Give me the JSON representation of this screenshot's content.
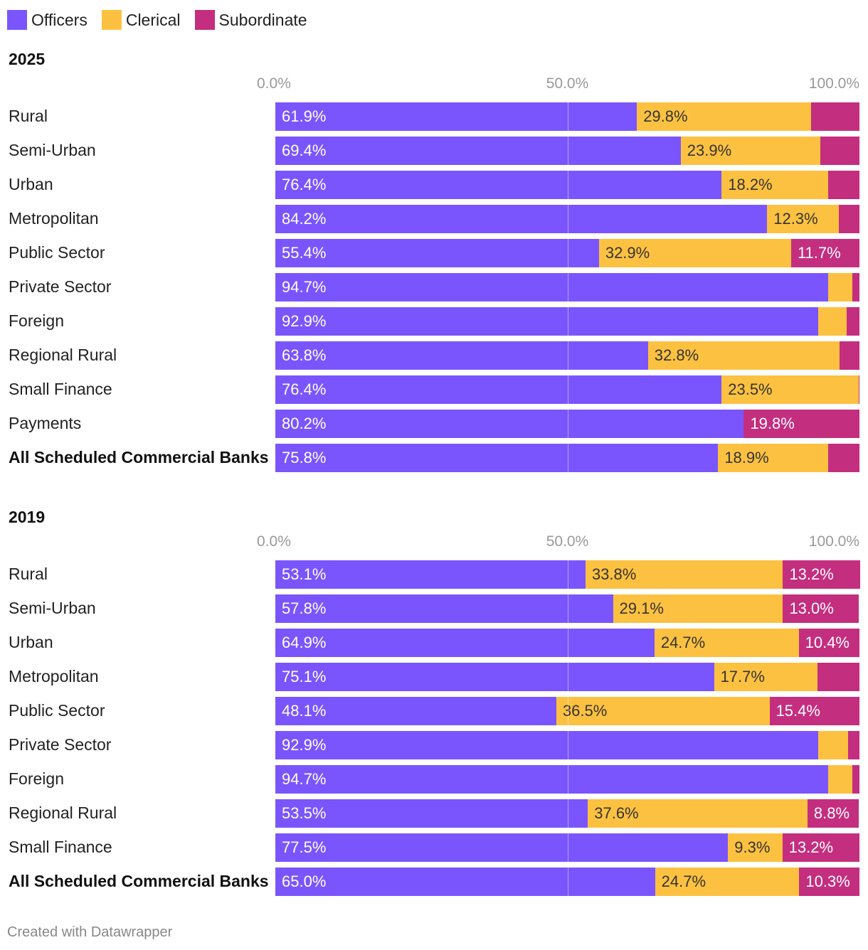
{
  "legend": [
    {
      "key": "officers",
      "label": "Officers",
      "color": "#7a55fd"
    },
    {
      "key": "clerical",
      "label": "Clerical",
      "color": "#fdc141"
    },
    {
      "key": "subordinate",
      "label": "Subordinate",
      "color": "#c42e7f"
    }
  ],
  "footer": "Created with Datawrapper",
  "chart_data": [
    {
      "type": "bar",
      "orientation": "horizontal",
      "stacked": true,
      "title": "2025",
      "xlim": [
        0,
        100
      ],
      "ticks": [
        "0.0%",
        "50.0%",
        "100.0%"
      ],
      "categories": [
        "Rural",
        "Semi-Urban",
        "Urban",
        "Metropolitan",
        "Public Sector",
        "Private Sector",
        "Foreign",
        "Regional Rural",
        "Small Finance",
        "Payments",
        "All Scheduled Commercial Banks"
      ],
      "series": [
        {
          "name": "Officers",
          "values": [
            61.9,
            69.4,
            76.4,
            84.2,
            55.4,
            94.7,
            92.9,
            63.8,
            76.4,
            80.2,
            75.8
          ]
        },
        {
          "name": "Clerical",
          "values": [
            29.8,
            23.9,
            18.2,
            12.3,
            32.9,
            4.1,
            4.9,
            32.8,
            23.5,
            0.0,
            18.9
          ]
        },
        {
          "name": "Subordinate",
          "values": [
            8.3,
            6.7,
            5.4,
            3.5,
            11.7,
            1.2,
            2.2,
            3.4,
            0.1,
            19.8,
            5.3
          ]
        }
      ],
      "shown_labels": [
        [
          "61.9%",
          "29.8%",
          ""
        ],
        [
          "69.4%",
          "23.9%",
          ""
        ],
        [
          "76.4%",
          "18.2%",
          ""
        ],
        [
          "84.2%",
          "12.3%",
          ""
        ],
        [
          "55.4%",
          "32.9%",
          "11.7%"
        ],
        [
          "94.7%",
          "",
          ""
        ],
        [
          "92.9%",
          "",
          ""
        ],
        [
          "63.8%",
          "32.8%",
          ""
        ],
        [
          "76.4%",
          "23.5%",
          ""
        ],
        [
          "80.2%",
          "",
          "19.8%"
        ],
        [
          "75.8%",
          "18.9%",
          ""
        ]
      ],
      "bold_categories": [
        "All Scheduled Commercial Banks"
      ]
    },
    {
      "type": "bar",
      "orientation": "horizontal",
      "stacked": true,
      "title": "2019",
      "xlim": [
        0,
        100
      ],
      "ticks": [
        "0.0%",
        "50.0%",
        "100.0%"
      ],
      "categories": [
        "Rural",
        "Semi-Urban",
        "Urban",
        "Metropolitan",
        "Public Sector",
        "Private Sector",
        "Foreign",
        "Regional Rural",
        "Small Finance",
        "All Scheduled Commercial Banks"
      ],
      "series": [
        {
          "name": "Officers",
          "values": [
            53.1,
            57.8,
            64.9,
            75.1,
            48.1,
            92.9,
            94.7,
            53.5,
            77.5,
            65.0
          ]
        },
        {
          "name": "Clerical",
          "values": [
            33.8,
            29.1,
            24.7,
            17.7,
            36.5,
            5.1,
            4.1,
            37.6,
            9.3,
            24.7
          ]
        },
        {
          "name": "Subordinate",
          "values": [
            13.2,
            13.0,
            10.4,
            7.2,
            15.4,
            2.0,
            1.2,
            8.8,
            13.2,
            10.3
          ]
        }
      ],
      "shown_labels": [
        [
          "53.1%",
          "33.8%",
          "13.2%"
        ],
        [
          "57.8%",
          "29.1%",
          "13.0%"
        ],
        [
          "64.9%",
          "24.7%",
          "10.4%"
        ],
        [
          "75.1%",
          "17.7%",
          ""
        ],
        [
          "48.1%",
          "36.5%",
          "15.4%"
        ],
        [
          "92.9%",
          "",
          ""
        ],
        [
          "94.7%",
          "",
          ""
        ],
        [
          "53.5%",
          "37.6%",
          "8.8%"
        ],
        [
          "77.5%",
          "9.3%",
          "13.2%"
        ],
        [
          "65.0%",
          "24.7%",
          "10.3%"
        ]
      ],
      "bold_categories": [
        "All Scheduled Commercial Banks"
      ]
    }
  ]
}
